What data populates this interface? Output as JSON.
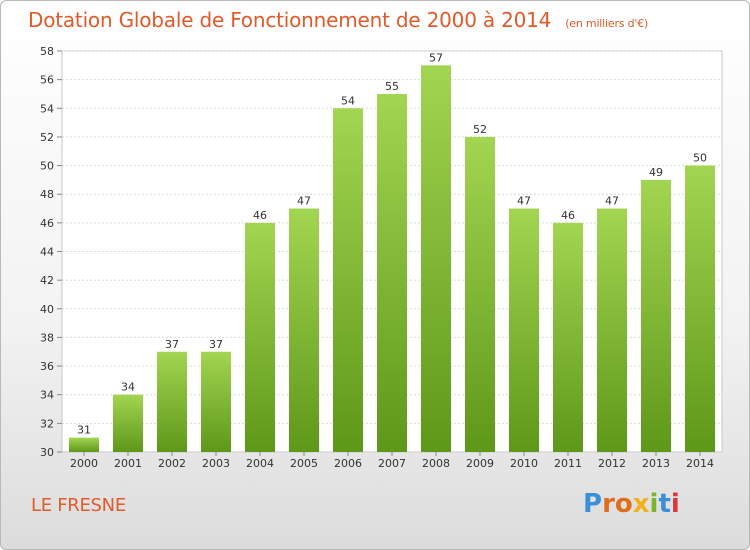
{
  "header": {
    "title": "Dotation Globale de Fonctionnement de 2000 à 2014",
    "subtitle": "(en milliers d'€)"
  },
  "footer": {
    "commune": "LE FRESNE",
    "logo_letters": [
      "P",
      "r",
      "o",
      "x",
      "i",
      "t",
      "i"
    ],
    "logo_colors": [
      "#3a8fd8",
      "#e06d1c",
      "#e06d1c",
      "#f2b21a",
      "#7ab52a",
      "#3a8fd8",
      "#d83a3a"
    ]
  },
  "chart_data": {
    "type": "bar",
    "categories": [
      "2000",
      "2001",
      "2002",
      "2003",
      "2004",
      "2005",
      "2006",
      "2007",
      "2008",
      "2009",
      "2010",
      "2011",
      "2012",
      "2013",
      "2014"
    ],
    "values": [
      31,
      34,
      37,
      37,
      46,
      47,
      54,
      55,
      57,
      52,
      47,
      46,
      47,
      49,
      50
    ],
    "ylim": [
      30,
      58
    ],
    "yticks": [
      30,
      32,
      34,
      36,
      38,
      40,
      42,
      44,
      46,
      48,
      50,
      52,
      54,
      56,
      58
    ],
    "grid": true,
    "colors": {
      "bar_top": "#9dd14d",
      "bar_bottom": "#5f9a1a",
      "title": "#e05a2a"
    }
  }
}
